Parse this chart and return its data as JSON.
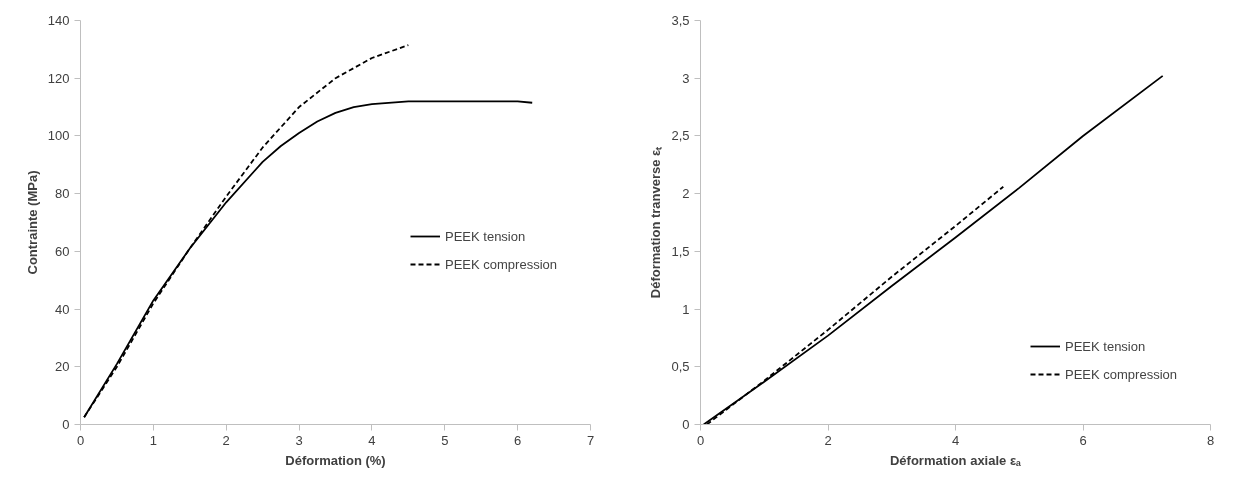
{
  "chart_data": [
    {
      "type": "line",
      "xlabel": "Déformation (%)",
      "ylabel": "Contrainte (MPa)",
      "xlim": [
        0,
        7
      ],
      "xticks": [
        0,
        1,
        2,
        3,
        4,
        5,
        6,
        7
      ],
      "ylim": [
        0,
        140
      ],
      "yticks": [
        0,
        20,
        40,
        60,
        80,
        100,
        120,
        140
      ],
      "grid": false,
      "legend": "right",
      "marker": "none",
      "series": [
        {
          "name": "PEEK tension",
          "color": "#000000",
          "line_style": "solid",
          "x": [
            0.05,
            0.5,
            1,
            1.5,
            2,
            2.5,
            2.75,
            3,
            3.25,
            3.5,
            3.75,
            4,
            4.5,
            5,
            5.5,
            6,
            6.2
          ],
          "values": [
            2.5,
            21,
            43,
            61,
            77,
            91,
            96.5,
            101,
            105,
            108,
            110,
            111,
            112,
            112,
            112,
            112,
            111.5
          ]
        },
        {
          "name": "PEEK compression",
          "color": "#000000",
          "line_style": "dashed",
          "x": [
            0.05,
            0.5,
            1,
            1.5,
            2,
            2.5,
            3,
            3.5,
            4,
            4.5
          ],
          "values": [
            2.5,
            20,
            42,
            61,
            79,
            96,
            110,
            120,
            127,
            131.5
          ]
        }
      ]
    },
    {
      "type": "line",
      "xlabel": "Déformation axiale εₐ",
      "ylabel": "Déformation tranverse εₜ",
      "xlim": [
        0,
        8
      ],
      "xticks": [
        0,
        2,
        4,
        6,
        8
      ],
      "ylim": [
        0,
        3.5
      ],
      "yticks": [
        0,
        {
          "value": 0.5,
          "label": "0,5"
        },
        1,
        {
          "value": 1.5,
          "label": "1,5"
        },
        2,
        {
          "value": 2.5,
          "label": "2,5"
        },
        3,
        {
          "value": 3.5,
          "label": "3,5"
        }
      ],
      "grid": false,
      "legend": "bottom right",
      "marker": "none",
      "series": [
        {
          "name": "PEEK tension",
          "color": "#000000",
          "line_style": "solid",
          "x": [
            0.05,
            1,
            2,
            3,
            4,
            5,
            6,
            7.25
          ],
          "values": [
            0,
            0.37,
            0.77,
            1.2,
            1.62,
            2.05,
            2.5,
            3.02
          ]
        },
        {
          "name": "PEEK compression",
          "color": "#000000",
          "line_style": "dashed",
          "x": [
            0.1,
            1,
            2,
            3,
            4,
            4.75
          ],
          "values": [
            0,
            0.38,
            0.82,
            1.28,
            1.72,
            2.06
          ]
        }
      ]
    }
  ]
}
